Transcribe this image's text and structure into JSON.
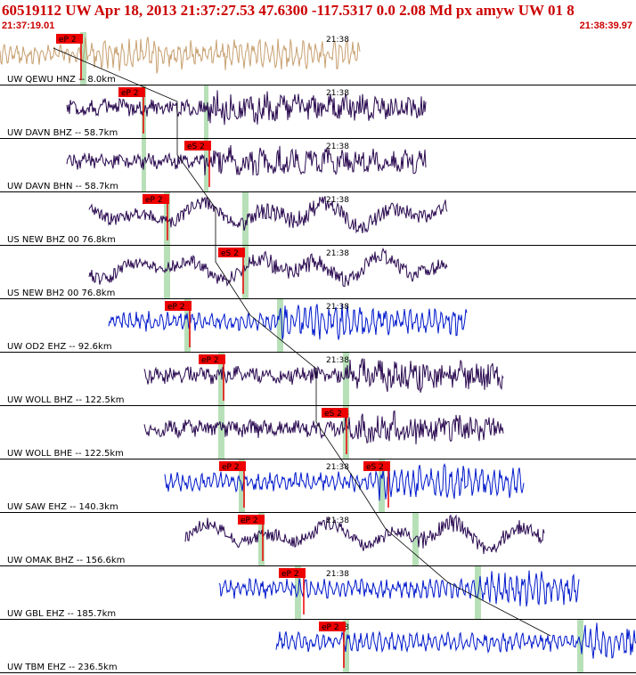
{
  "header": {
    "title": "60519112 UW Apr 18, 2013 21:37:27.53    47.6300 -117.5317  0.0 2.08 Md px amyw UW 01   8",
    "start_time": "21:37:19.01",
    "end_time": "21:38:39.97"
  },
  "minute_label": "21:38",
  "colors": {
    "title": "#cc0000",
    "pick_box": "#ee0000",
    "window": "#b8e0b8",
    "trace_dark": "#2a0a50",
    "trace_blue": "#0018cc",
    "trace_tan": "#c8a070"
  },
  "traces": [
    {
      "label": "UW QEWU HNZ -- 8.0km",
      "color": "tan",
      "start": 0,
      "end": 404,
      "amp": 22,
      "freq": "high",
      "green": [
        90,
        97
      ],
      "picks": [
        {
          "text": "eP 2",
          "x": 91
        }
      ],
      "minute_x": 366
    },
    {
      "label": "UW DAVN BHZ -- 58.7km",
      "color": "dark",
      "start": 75,
      "end": 478,
      "amp": 20,
      "freq": "mid",
      "green": [
        159,
        164,
        229,
        234
      ],
      "picks": [
        {
          "text": "eP 2",
          "x": 161
        }
      ],
      "minute_x": 366
    },
    {
      "label": "UW DAVN BHN -- 58.7km",
      "color": "dark",
      "start": 75,
      "end": 478,
      "amp": 18,
      "freq": "mid",
      "green": [
        159,
        164,
        229,
        234
      ],
      "picks": [
        {
          "text": "eS 2",
          "x": 235
        }
      ],
      "minute_x": 366
    },
    {
      "label": "US NEW BHZ 00 76.8km",
      "color": "dark",
      "start": 100,
      "end": 502,
      "amp": 20,
      "freq": "low",
      "green": [
        184,
        191,
        272,
        279
      ],
      "picks": [
        {
          "text": "eP 2",
          "x": 188
        }
      ],
      "minute_x": 366
    },
    {
      "label": "US NEW BH2 00 76.8km",
      "color": "dark",
      "start": 100,
      "end": 502,
      "amp": 20,
      "freq": "low",
      "green": [
        184,
        191,
        272,
        279
      ],
      "picks": [
        {
          "text": "eS 2",
          "x": 273
        }
      ],
      "minute_x": 366
    },
    {
      "label": "UW OD2 EHZ -- 92.6km",
      "color": "blue",
      "start": 122,
      "end": 524,
      "amp": 22,
      "freq": "high",
      "green": [
        207,
        214,
        311,
        318
      ],
      "picks": [
        {
          "text": "eP 2",
          "x": 213
        }
      ],
      "minute_x": 366
    },
    {
      "label": "UW WOLL BHZ -- 122.5km",
      "color": "dark",
      "start": 162,
      "end": 565,
      "amp": 20,
      "freq": "mid",
      "green": [
        245,
        252,
        385,
        392
      ],
      "picks": [
        {
          "text": "eP 2",
          "x": 251
        }
      ],
      "minute_x": 366
    },
    {
      "label": "UW WOLL BHE -- 122.5km",
      "color": "dark",
      "start": 162,
      "end": 565,
      "amp": 20,
      "freq": "mid",
      "green": [
        245,
        252,
        385,
        392
      ],
      "picks": [
        {
          "text": "eS 2",
          "x": 389
        }
      ],
      "minute_x": 366
    },
    {
      "label": "UW SAW EHZ -- 140.3km",
      "color": "blue",
      "start": 185,
      "end": 588,
      "amp": 22,
      "freq": "high",
      "green": [
        268,
        275,
        425,
        432
      ],
      "picks": [
        {
          "text": "eP 2",
          "x": 274
        },
        {
          "text": "eS 2",
          "x": 436
        }
      ],
      "minute_x": 366
    },
    {
      "label": "UW OMAK BHZ -- 156.6km",
      "color": "dark",
      "start": 208,
      "end": 611,
      "amp": 20,
      "freq": "low",
      "green": [
        290,
        297,
        463,
        470
      ],
      "picks": [
        {
          "text": "eP 2",
          "x": 295
        }
      ],
      "minute_x": 366
    },
    {
      "label": "UW GBL EHZ -- 185.7km",
      "color": "blue",
      "start": 246,
      "end": 650,
      "amp": 22,
      "freq": "high",
      "green": [
        331,
        338,
        533,
        540
      ],
      "picks": [
        {
          "text": "eP 2",
          "x": 341
        }
      ],
      "minute_x": 366
    },
    {
      "label": "UW TBM EHZ -- 236.5km",
      "color": "blue",
      "start": 310,
      "end": 714,
      "amp": 22,
      "freq": "high",
      "green": [
        385,
        392,
        648,
        655
      ],
      "picks": [
        {
          "text": "eP 2",
          "x": 386
        }
      ],
      "minute_x": 366
    }
  ]
}
